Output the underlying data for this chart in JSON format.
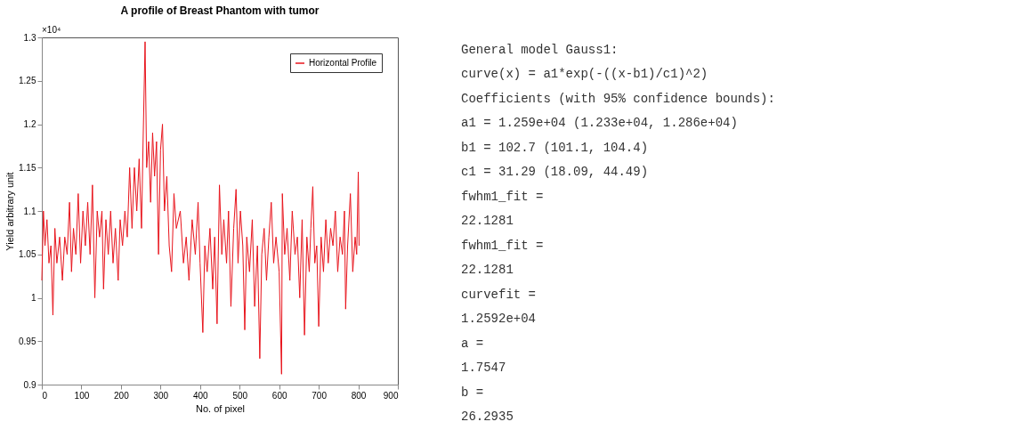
{
  "chart_data": [
    {
      "type": "line",
      "title": "A profile of Breast Phantom with tumor",
      "xlabel": "No. of pixel",
      "ylabel": "Yield arbitrary unit",
      "annotations": [
        "×10⁴"
      ],
      "legend": "top right",
      "grid": false,
      "line_style": "solid",
      "xlim": [
        0,
        900
      ],
      "xticks": [
        0,
        100,
        200,
        300,
        400,
        500,
        600,
        700,
        800,
        900
      ],
      "ylim": [
        0.9,
        1.3
      ],
      "yticks": [
        0.9,
        0.95,
        1,
        1.05,
        1.1,
        1.15,
        1.2,
        1.25,
        1.3
      ],
      "series": [
        {
          "name": "Horizontal Profile",
          "color": "#e8141c",
          "x": [
            0,
            4,
            8,
            13,
            18,
            23,
            28,
            33,
            38,
            45,
            52,
            58,
            64,
            70,
            75,
            80,
            86,
            92,
            98,
            104,
            110,
            116,
            122,
            128,
            134,
            140,
            146,
            152,
            156,
            162,
            168,
            174,
            180,
            186,
            193,
            198,
            204,
            210,
            216,
            222,
            228,
            234,
            240,
            246,
            252,
            256,
            261,
            265,
            270,
            275,
            280,
            285,
            290,
            295,
            300,
            305,
            310,
            316,
            322,
            328,
            334,
            340,
            350,
            358,
            365,
            372,
            380,
            388,
            395,
            400,
            407,
            412,
            418,
            425,
            432,
            437,
            443,
            449,
            455,
            460,
            467,
            472,
            478,
            485,
            491,
            496,
            502,
            508,
            513,
            518,
            525,
            532,
            538,
            545,
            551,
            556,
            562,
            568,
            574,
            580,
            586,
            592,
            600,
            606,
            608,
            614,
            620,
            627,
            633,
            640,
            646,
            652,
            658,
            664,
            670,
            676,
            680,
            685,
            690,
            695,
            700,
            706,
            712,
            718,
            724,
            730,
            736,
            742,
            748,
            754,
            760,
            765,
            768,
            773,
            780,
            786,
            792,
            796,
            800,
            802
          ],
          "values": [
            1.02,
            1.1,
            1.06,
            1.09,
            1.04,
            1.06,
            0.98,
            1.08,
            1.04,
            1.07,
            1.02,
            1.07,
            1.05,
            1.11,
            1.03,
            1.08,
            1.05,
            1.12,
            1.04,
            1.1,
            1.06,
            1.11,
            1.05,
            1.13,
            1.0,
            1.1,
            1.07,
            1.1,
            1.01,
            1.09,
            1.05,
            1.1,
            1.04,
            1.08,
            1.02,
            1.09,
            1.06,
            1.1,
            1.07,
            1.15,
            1.08,
            1.15,
            1.1,
            1.16,
            1.08,
            1.18,
            1.295,
            1.15,
            1.18,
            1.11,
            1.19,
            1.14,
            1.18,
            1.05,
            1.17,
            1.2,
            1.1,
            1.14,
            1.06,
            1.03,
            1.12,
            1.08,
            1.1,
            1.04,
            1.07,
            1.02,
            1.09,
            1.05,
            1.11,
            1.04,
            0.96,
            1.06,
            1.03,
            1.08,
            1.01,
            1.07,
            0.97,
            1.13,
            1.05,
            1.09,
            1.04,
            1.1,
            0.99,
            1.08,
            1.125,
            1.04,
            1.1,
            1.06,
            0.963,
            1.07,
            1.03,
            1.09,
            0.99,
            1.06,
            0.93,
            1.05,
            1.08,
            1.02,
            1.07,
            1.11,
            1.04,
            1.07,
            1.03,
            0.912,
            1.12,
            1.05,
            1.08,
            1.02,
            1.1,
            1.05,
            1.07,
            1.0,
            1.09,
            0.957,
            1.07,
            1.03,
            1.08,
            1.128,
            1.04,
            1.06,
            0.967,
            1.07,
            1.03,
            1.09,
            1.04,
            1.08,
            1.06,
            1.1,
            1.03,
            1.07,
            1.05,
            1.1,
            0.987,
            1.06,
            1.12,
            1.03,
            1.07,
            1.05,
            1.145,
            1.06
          ]
        }
      ]
    },
    {
      "type": "other",
      "annotations": [
        "General model Gauss1:",
        "curve(x) =  a1*exp(-((x-b1)/c1)^2)",
        "Coefficients (with 95% confidence bounds):",
        "a1 =   1.259e+04  (1.233e+04, 1.286e+04)",
        "b1 =       102.7  (101.1, 104.4)",
        "c1 =       31.29  (18.09, 44.49)",
        "fwhm1_fit =",
        "22.1281",
        "fwhm1_fit =",
        "22.1281",
        "curvefit =",
        "1.2592e+04",
        "a =",
        "1.7547",
        "b =",
        "26.2935"
      ]
    }
  ]
}
